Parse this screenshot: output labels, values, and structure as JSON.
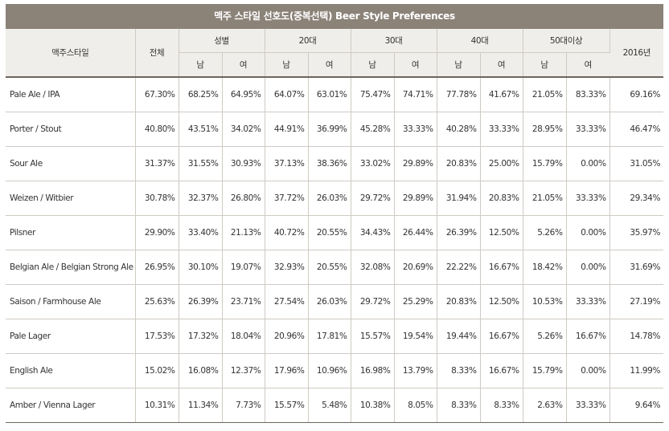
{
  "title": "맥주 스타일 선호도(중복선택)  Beer Style Preferences",
  "headers": {
    "style": "맥주스타일",
    "total": "전체",
    "gender": "성별",
    "age20": "20대",
    "age30": "30대",
    "age40": "40대",
    "age50": "50대이상",
    "y2016": "2016년",
    "male": "남",
    "female": "여"
  },
  "rows": [
    {
      "style": "Pale Ale / IPA",
      "values": [
        "67.30%",
        "68.25%",
        "64.95%",
        "64.07%",
        "63.01%",
        "75.47%",
        "74.71%",
        "77.78%",
        "41.67%",
        "21.05%",
        "83.33%",
        "69.16%"
      ]
    },
    {
      "style": "Porter / Stout",
      "values": [
        "40.80%",
        "43.51%",
        "34.02%",
        "44.91%",
        "36.99%",
        "45.28%",
        "33.33%",
        "40.28%",
        "33.33%",
        "28.95%",
        "33.33%",
        "46.47%"
      ]
    },
    {
      "style": "Sour Ale",
      "values": [
        "31.37%",
        "31.55%",
        "30.93%",
        "37.13%",
        "38.36%",
        "33.02%",
        "29.89%",
        "20.83%",
        "25.00%",
        "15.79%",
        "0.00%",
        "31.05%"
      ]
    },
    {
      "style": "Weizen / Witbier",
      "values": [
        "30.78%",
        "32.37%",
        "26.80%",
        "37.72%",
        "26.03%",
        "29.72%",
        "29.89%",
        "31.94%",
        "20.83%",
        "21.05%",
        "33.33%",
        "29.34%"
      ]
    },
    {
      "style": "Pilsner",
      "values": [
        "29.90%",
        "33.40%",
        "21.13%",
        "40.72%",
        "20.55%",
        "34.43%",
        "26.44%",
        "26.39%",
        "12.50%",
        "5.26%",
        "0.00%",
        "35.97%"
      ]
    },
    {
      "style": "Belgian Ale / Belgian Strong Ale",
      "values": [
        "26.95%",
        "30.10%",
        "19.07%",
        "32.93%",
        "20.55%",
        "32.08%",
        "20.69%",
        "22.22%",
        "16.67%",
        "18.42%",
        "0.00%",
        "31.69%"
      ]
    },
    {
      "style": "Saison / Farmhouse Ale",
      "values": [
        "25.63%",
        "26.39%",
        "23.71%",
        "27.54%",
        "26.03%",
        "29.72%",
        "25.29%",
        "20.83%",
        "12.50%",
        "10.53%",
        "33.33%",
        "27.19%"
      ]
    },
    {
      "style": "Pale Lager",
      "values": [
        "17.53%",
        "17.32%",
        "18.04%",
        "20.96%",
        "17.81%",
        "15.57%",
        "19.54%",
        "19.44%",
        "16.67%",
        "5.26%",
        "16.67%",
        "14.78%"
      ]
    },
    {
      "style": "English Ale",
      "values": [
        "15.02%",
        "16.08%",
        "12.37%",
        "17.96%",
        "10.96%",
        "16.98%",
        "13.79%",
        "8.33%",
        "16.67%",
        "15.79%",
        "0.00%",
        "11.99%"
      ]
    },
    {
      "style": "Amber / Vienna Lager",
      "values": [
        "10.31%",
        "11.34%",
        "7.73%",
        "15.57%",
        "5.48%",
        "10.38%",
        "8.05%",
        "8.33%",
        "8.33%",
        "2.63%",
        "33.33%",
        "9.64%"
      ]
    }
  ]
}
